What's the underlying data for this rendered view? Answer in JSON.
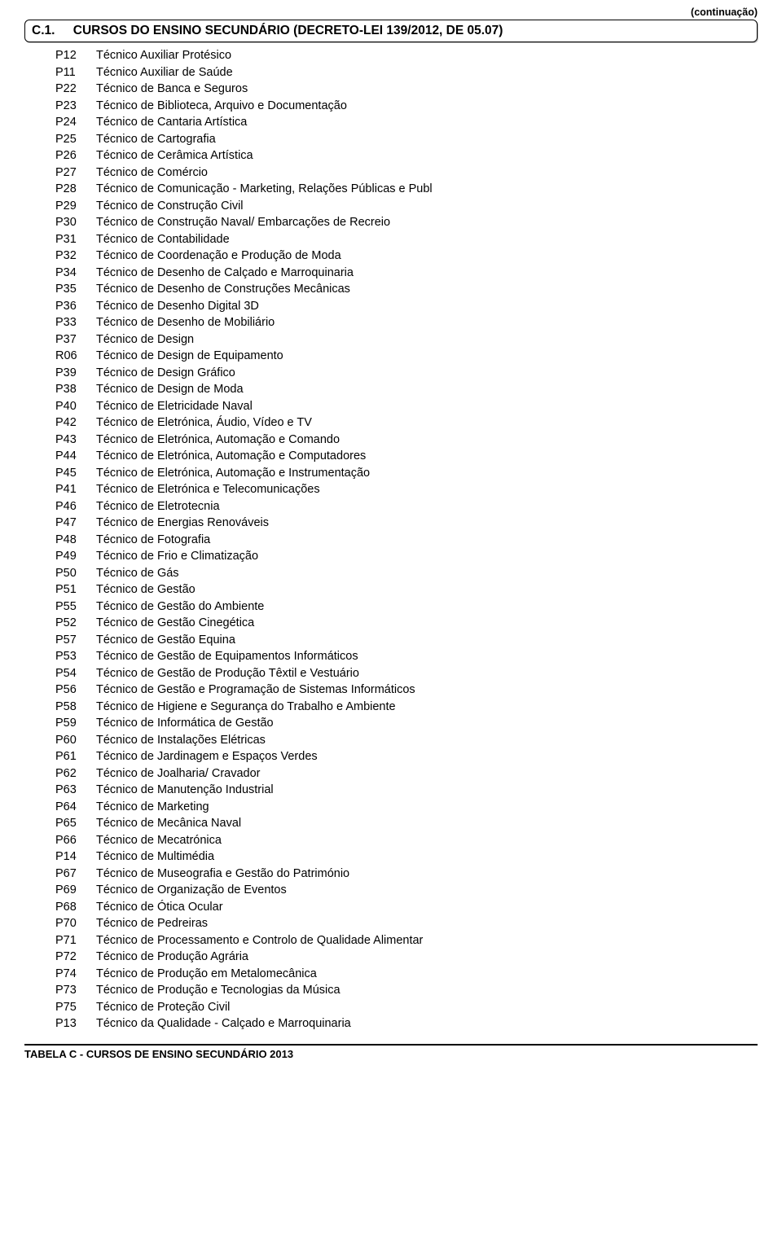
{
  "continuation_label": "(continuação)",
  "header": {
    "number": "C.1.",
    "title": "CURSOS DO ENSINO SECUNDÁRIO (DECRETO-LEI 139/2012, DE 05.07)"
  },
  "rows": [
    {
      "code": "P12",
      "desc": "Técnico Auxiliar Protésico"
    },
    {
      "code": "P11",
      "desc": "Técnico Auxiliar de Saúde"
    },
    {
      "code": "P22",
      "desc": "Técnico de Banca e Seguros"
    },
    {
      "code": "P23",
      "desc": "Técnico de Biblioteca, Arquivo e Documentação"
    },
    {
      "code": "P24",
      "desc": "Técnico de Cantaria Artística"
    },
    {
      "code": "P25",
      "desc": "Técnico de Cartografia"
    },
    {
      "code": "P26",
      "desc": "Técnico de Cerâmica Artística"
    },
    {
      "code": "P27",
      "desc": "Técnico de Comércio"
    },
    {
      "code": "P28",
      "desc": "Técnico de Comunicação - Marketing, Relações Públicas e Publ"
    },
    {
      "code": "P29",
      "desc": "Técnico de Construção Civil"
    },
    {
      "code": "P30",
      "desc": "Técnico de Construção Naval/ Embarcações de Recreio"
    },
    {
      "code": "P31",
      "desc": "Técnico de Contabilidade"
    },
    {
      "code": "P32",
      "desc": "Técnico de Coordenação e Produção de Moda"
    },
    {
      "code": "P34",
      "desc": "Técnico de Desenho de Calçado e Marroquinaria"
    },
    {
      "code": "P35",
      "desc": "Técnico de Desenho de Construções Mecânicas"
    },
    {
      "code": "P36",
      "desc": "Técnico de Desenho Digital 3D"
    },
    {
      "code": "P33",
      "desc": "Técnico de Desenho de Mobiliário"
    },
    {
      "code": "P37",
      "desc": "Técnico de Design"
    },
    {
      "code": "R06",
      "desc": "Técnico de Design de Equipamento"
    },
    {
      "code": "P39",
      "desc": "Técnico de Design Gráfico"
    },
    {
      "code": "P38",
      "desc": "Técnico de Design de Moda"
    },
    {
      "code": "P40",
      "desc": "Técnico de Eletricidade Naval"
    },
    {
      "code": "P42",
      "desc": "Técnico de Eletrónica, Áudio, Vídeo e TV"
    },
    {
      "code": "P43",
      "desc": "Técnico de Eletrónica, Automação e Comando"
    },
    {
      "code": "P44",
      "desc": "Técnico de Eletrónica, Automação e Computadores"
    },
    {
      "code": "P45",
      "desc": "Técnico de Eletrónica, Automação e Instrumentação"
    },
    {
      "code": "P41",
      "desc": "Técnico de Eletrónica e Telecomunicações"
    },
    {
      "code": "P46",
      "desc": "Técnico de Eletrotecnia"
    },
    {
      "code": "P47",
      "desc": "Técnico de Energias Renováveis"
    },
    {
      "code": "P48",
      "desc": "Técnico de Fotografia"
    },
    {
      "code": "P49",
      "desc": "Técnico de Frio e Climatização"
    },
    {
      "code": "P50",
      "desc": "Técnico de Gás"
    },
    {
      "code": "P51",
      "desc": "Técnico de Gestão"
    },
    {
      "code": "P55",
      "desc": "Técnico de Gestão do Ambiente"
    },
    {
      "code": "P52",
      "desc": "Técnico de Gestão Cinegética"
    },
    {
      "code": "P57",
      "desc": "Técnico de Gestão Equina"
    },
    {
      "code": "P53",
      "desc": "Técnico de Gestão de Equipamentos Informáticos"
    },
    {
      "code": "P54",
      "desc": "Técnico de Gestão de Produção Têxtil e Vestuário"
    },
    {
      "code": "P56",
      "desc": "Técnico de Gestão e Programação de Sistemas Informáticos"
    },
    {
      "code": "P58",
      "desc": "Técnico de Higiene e Segurança do Trabalho e Ambiente"
    },
    {
      "code": "P59",
      "desc": "Técnico de Informática de Gestão"
    },
    {
      "code": "P60",
      "desc": "Técnico de Instalações Elétricas"
    },
    {
      "code": "P61",
      "desc": "Técnico de Jardinagem e Espaços Verdes"
    },
    {
      "code": "P62",
      "desc": "Técnico de Joalharia/ Cravador"
    },
    {
      "code": "P63",
      "desc": "Técnico de Manutenção Industrial"
    },
    {
      "code": "P64",
      "desc": "Técnico de Marketing"
    },
    {
      "code": "P65",
      "desc": "Técnico de Mecânica Naval"
    },
    {
      "code": "P66",
      "desc": "Técnico de Mecatrónica"
    },
    {
      "code": "P14",
      "desc": "Técnico de Multimédia"
    },
    {
      "code": "P67",
      "desc": "Técnico de Museografia e Gestão do Património"
    },
    {
      "code": "P69",
      "desc": "Técnico de Organização de Eventos"
    },
    {
      "code": "P68",
      "desc": "Técnico de Ótica Ocular"
    },
    {
      "code": "P70",
      "desc": "Técnico de Pedreiras"
    },
    {
      "code": "P71",
      "desc": "Técnico de Processamento e Controlo de Qualidade Alimentar"
    },
    {
      "code": "P72",
      "desc": "Técnico de Produção Agrária"
    },
    {
      "code": "P74",
      "desc": "Técnico de Produção em Metalomecânica"
    },
    {
      "code": "P73",
      "desc": "Técnico de Produção e Tecnologias da Música"
    },
    {
      "code": "P75",
      "desc": "Técnico de Proteção Civil"
    },
    {
      "code": "P13",
      "desc": "Técnico da Qualidade - Calçado e Marroquinaria"
    }
  ],
  "footer": "TABELA C - CURSOS DE ENSINO SECUNDÁRIO 2013"
}
